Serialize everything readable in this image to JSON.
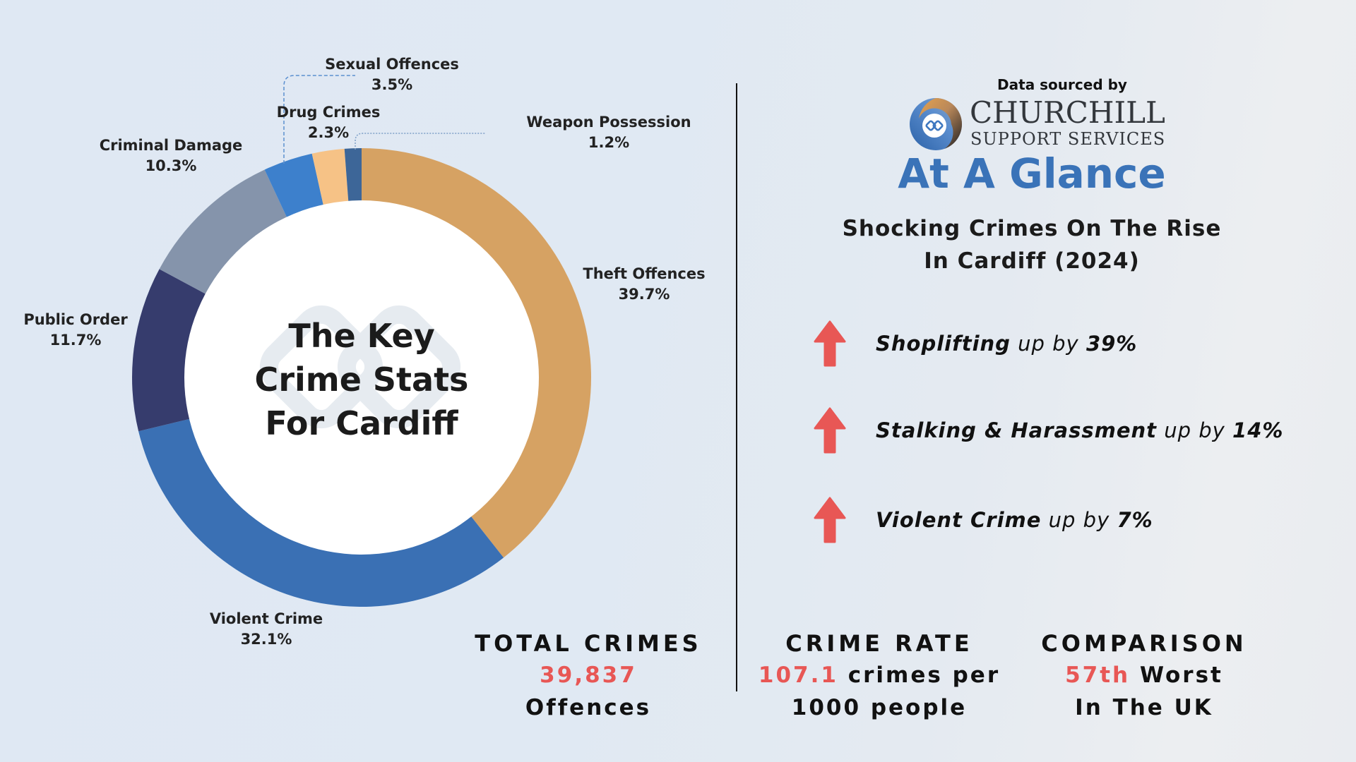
{
  "chart_data": {
    "type": "pie",
    "subtype": "donut",
    "title": "The Key Crime Stats For Cardiff",
    "categories": [
      "Theft Offences",
      "Violent Crime",
      "Public Order",
      "Criminal Damage",
      "Sexual Offences",
      "Drug Crimes",
      "Weapon Possession"
    ],
    "values": [
      39.7,
      32.1,
      11.7,
      10.3,
      3.5,
      2.3,
      1.2
    ],
    "unit": "%",
    "colors": [
      "#D6A263",
      "#3A70B4",
      "#363C6D",
      "#8594AB",
      "#3D80CC",
      "#F6C286",
      "#3D6698"
    ],
    "start_angle": "12 o'clock, clockwise",
    "legend": "none (direct labels)"
  },
  "donut": {
    "center_title": [
      "The Key",
      "Crime Stats",
      "For Cardiff"
    ],
    "labels": [
      {
        "name": "Theft Offences",
        "pct": "39.7%"
      },
      {
        "name": "Violent Crime",
        "pct": "32.1%"
      },
      {
        "name": "Public Order",
        "pct": "11.7%"
      },
      {
        "name": "Criminal Damage",
        "pct": "10.3%"
      },
      {
        "name": "Sexual Offences",
        "pct": "3.5%"
      },
      {
        "name": "Drug Crimes",
        "pct": "2.3%"
      },
      {
        "name": "Weapon Possession",
        "pct": "1.2%"
      }
    ]
  },
  "source": {
    "label": "Data sourced by",
    "brand_line1": "CHURCHILL",
    "brand_line2": "SUPPORT SERVICES"
  },
  "glance": {
    "heading": "At A Glance",
    "subtitle_line1": "Shocking Crimes On The Rise",
    "subtitle_line2": "In Cardiff (2024)",
    "accent_color": "#3A73B8",
    "trends": [
      {
        "crime": "Shoplifting",
        "connector": "up by",
        "change": "39%"
      },
      {
        "crime": "Stalking & Harassment",
        "connector": "up by",
        "change": "14%"
      },
      {
        "crime": "Violent Crime",
        "connector": "up by",
        "change": "7%"
      }
    ],
    "arrow_color": "#E85755"
  },
  "stats": {
    "total": {
      "heading": "TOTAL CRIMES",
      "value": "39,837",
      "unit": "Offences"
    },
    "rate": {
      "heading": "CRIME RATE",
      "value": "107.1",
      "line1_rest": " crimes per",
      "line2": "1000 people"
    },
    "comparison": {
      "heading": "COMPARISON",
      "value": "57th",
      "line1_rest": " Worst",
      "line2": "In The UK"
    }
  }
}
